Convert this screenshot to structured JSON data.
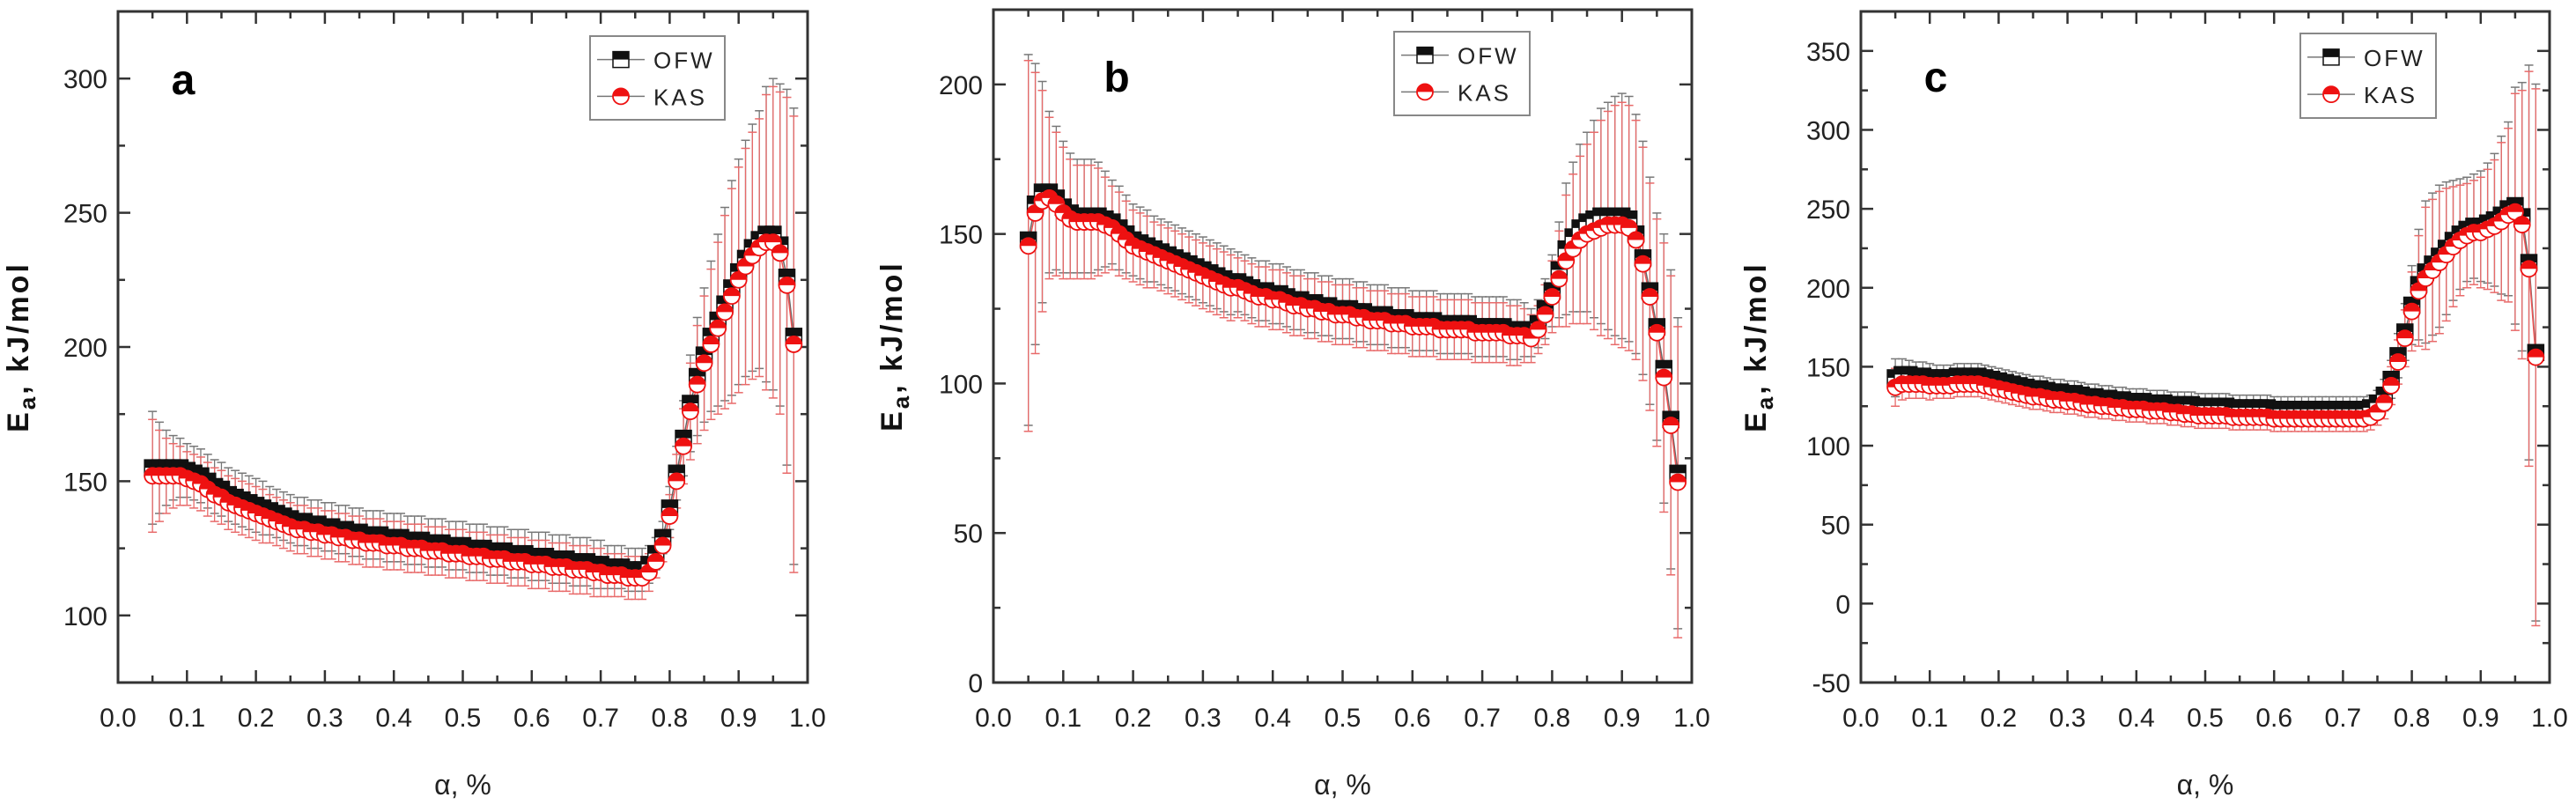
{
  "colors": {
    "ofw": "#111111",
    "kas": "#ee1111",
    "err_kas": "#e86a6a",
    "err_ofw": "#777777",
    "frame": "#333333"
  },
  "chart_data": [
    {
      "type": "scatter",
      "panel": "a",
      "xlabel": "α, %",
      "ylabel_main": "E",
      "ylabel_sub": "a",
      "ylabel_rest": ", kJ/mol",
      "xlim": [
        0,
        1
      ],
      "ylim": [
        75,
        325
      ],
      "xticks": [
        0.0,
        0.1,
        0.2,
        0.3,
        0.4,
        0.5,
        0.6,
        0.7,
        0.8,
        0.9,
        1.0
      ],
      "xtick_labels": [
        "0.0",
        "0.1",
        "0.2",
        "0.3",
        "0.4",
        "0.5",
        "0.6",
        "0.7",
        "0.8",
        "0.9",
        "1.0"
      ],
      "yticks": [
        100,
        150,
        200,
        250,
        300
      ],
      "ytick_labels": [
        "100",
        "150",
        "200",
        "250",
        "300"
      ],
      "legend": [
        "OFW",
        "KAS"
      ],
      "legend_position": "top-right",
      "x_start": 0.05,
      "x_step": 0.01,
      "series": [
        {
          "name": "OFW",
          "values": [
            155,
            155,
            155,
            155,
            155,
            154,
            153,
            152,
            150,
            148,
            147,
            145,
            144,
            143,
            142,
            141,
            140,
            139,
            138,
            137,
            136,
            135,
            135,
            134,
            134,
            133,
            133,
            132,
            132,
            131,
            131,
            130,
            130,
            130,
            129,
            129,
            129,
            128,
            128,
            128,
            127,
            127,
            127,
            126,
            126,
            126,
            125,
            125,
            125,
            124,
            124,
            124,
            123,
            123,
            123,
            122,
            122,
            122,
            121,
            121,
            121,
            120,
            120,
            120,
            119,
            119,
            118,
            118,
            118,
            117,
            117,
            117,
            119,
            123,
            129,
            140,
            153,
            166,
            179,
            189,
            197,
            204,
            210,
            216,
            222,
            228,
            233,
            237,
            240,
            242,
            242,
            238,
            226,
            204
          ]
        },
        {
          "name": "KAS",
          "values": [
            152,
            152,
            152,
            152,
            152,
            151,
            150,
            149,
            147,
            145,
            144,
            142,
            141,
            140,
            139,
            138,
            137,
            136,
            135,
            134,
            133,
            132,
            132,
            131,
            131,
            130,
            130,
            129,
            129,
            128,
            128,
            127,
            127,
            127,
            126,
            126,
            126,
            125,
            125,
            125,
            124,
            124,
            124,
            123,
            123,
            123,
            122,
            122,
            122,
            121,
            121,
            121,
            120,
            120,
            120,
            119,
            119,
            119,
            118,
            118,
            118,
            117,
            117,
            117,
            116,
            116,
            115,
            115,
            115,
            114,
            114,
            114,
            116,
            120,
            126,
            137,
            150,
            163,
            176,
            186,
            194,
            201,
            207,
            213,
            219,
            225,
            230,
            234,
            237,
            239,
            239,
            235,
            223,
            201
          ]
        }
      ],
      "error": [
        21,
        17,
        14,
        12,
        11,
        10,
        10,
        10,
        10,
        10,
        10,
        10,
        10,
        10,
        10,
        10,
        10,
        9,
        9,
        9,
        9,
        9,
        9,
        9,
        9,
        9,
        9,
        9,
        9,
        9,
        9,
        9,
        9,
        9,
        9,
        9,
        9,
        9,
        9,
        9,
        9,
        9,
        9,
        9,
        9,
        9,
        9,
        9,
        9,
        9,
        9,
        9,
        9,
        9,
        9,
        9,
        9,
        9,
        9,
        9,
        9,
        9,
        9,
        9,
        9,
        9,
        8,
        8,
        8,
        8,
        8,
        8,
        7,
        6,
        6,
        8,
        10,
        14,
        18,
        22,
        25,
        28,
        32,
        36,
        40,
        42,
        44,
        46,
        48,
        55,
        58,
        60,
        70,
        85
      ]
    },
    {
      "type": "scatter",
      "panel": "b",
      "xlabel": "α, %",
      "ylabel_main": "E",
      "ylabel_sub": "a",
      "ylabel_rest": ", kJ/mol",
      "xlim": [
        0,
        1
      ],
      "ylim": [
        0,
        225
      ],
      "xticks": [
        0.0,
        0.1,
        0.2,
        0.3,
        0.4,
        0.5,
        0.6,
        0.7,
        0.8,
        0.9,
        1.0
      ],
      "xtick_labels": [
        "0.0",
        "0.1",
        "0.2",
        "0.3",
        "0.4",
        "0.5",
        "0.6",
        "0.7",
        "0.8",
        "0.9",
        "1.0"
      ],
      "yticks": [
        0,
        50,
        100,
        150,
        200
      ],
      "ytick_labels": [
        "0",
        "50",
        "100",
        "150",
        "200"
      ],
      "legend": [
        "OFW",
        "KAS"
      ],
      "legend_position": "top-right",
      "x_start": 0.05,
      "x_step": 0.01,
      "series": [
        {
          "name": "OFW",
          "values": [
            148,
            160,
            164,
            164,
            162,
            159,
            157,
            156,
            156,
            156,
            156,
            155,
            154,
            152,
            150,
            148,
            147,
            146,
            145,
            144,
            143,
            142,
            141,
            140,
            139,
            138,
            137,
            136,
            135,
            134,
            134,
            133,
            132,
            131,
            131,
            130,
            130,
            129,
            128,
            128,
            127,
            127,
            126,
            126,
            125,
            125,
            125,
            124,
            124,
            123,
            123,
            123,
            122,
            122,
            122,
            121,
            121,
            121,
            121,
            120,
            120,
            120,
            120,
            120,
            119,
            119,
            119,
            119,
            119,
            118,
            118,
            118,
            117,
            120,
            125,
            131,
            138,
            145,
            149,
            152,
            154,
            155,
            156,
            156,
            156,
            156,
            155,
            150,
            142,
            131,
            119,
            105,
            88,
            70
          ]
        },
        {
          "name": "KAS",
          "values": [
            146,
            157,
            161,
            162,
            160,
            157,
            155,
            154,
            154,
            154,
            154,
            153,
            152,
            150,
            148,
            146,
            145,
            144,
            143,
            142,
            141,
            140,
            139,
            138,
            137,
            136,
            135,
            134,
            133,
            132,
            132,
            131,
            130,
            129,
            129,
            128,
            128,
            127,
            126,
            126,
            125,
            125,
            124,
            124,
            123,
            123,
            123,
            122,
            122,
            121,
            121,
            121,
            120,
            120,
            120,
            119,
            119,
            119,
            119,
            118,
            118,
            118,
            118,
            118,
            117,
            117,
            117,
            117,
            117,
            116,
            116,
            116,
            115,
            118,
            123,
            129,
            135,
            141,
            145,
            148,
            150,
            151,
            152,
            153,
            153,
            153,
            152,
            148,
            140,
            129,
            117,
            102,
            86,
            67
          ]
        }
      ],
      "error": [
        62,
        47,
        37,
        27,
        24,
        22,
        20,
        19,
        19,
        19,
        18,
        16,
        14,
        14,
        13,
        12,
        12,
        12,
        11,
        11,
        11,
        11,
        11,
        11,
        11,
        11,
        11,
        11,
        11,
        11,
        10,
        10,
        10,
        10,
        10,
        10,
        10,
        10,
        10,
        10,
        10,
        10,
        10,
        10,
        10,
        10,
        10,
        10,
        10,
        10,
        10,
        10,
        10,
        10,
        10,
        10,
        10,
        10,
        10,
        10,
        10,
        10,
        10,
        10,
        10,
        10,
        10,
        10,
        10,
        10,
        10,
        9,
        8,
        8,
        10,
        12,
        16,
        22,
        25,
        28,
        30,
        33,
        36,
        38,
        40,
        41,
        41,
        40,
        39,
        38,
        38,
        45,
        50,
        52
      ]
    },
    {
      "type": "scatter",
      "panel": "c",
      "xlabel": "α, %",
      "ylabel_main": "E",
      "ylabel_sub": "a",
      "ylabel_rest": ", kJ/mol",
      "xlim": [
        0,
        1
      ],
      "ylim": [
        -50,
        375
      ],
      "xticks": [
        0.0,
        0.1,
        0.2,
        0.3,
        0.4,
        0.5,
        0.6,
        0.7,
        0.8,
        0.9,
        1.0
      ],
      "xtick_labels": [
        "0.0",
        "0.1",
        "0.2",
        "0.3",
        "0.4",
        "0.5",
        "0.6",
        "0.7",
        "0.8",
        "0.9",
        "1.0"
      ],
      "yticks": [
        -50,
        0,
        50,
        100,
        150,
        200,
        250,
        300,
        350
      ],
      "ytick_labels": [
        "-50",
        "0",
        "50",
        "100",
        "150",
        "200",
        "250",
        "300",
        "350"
      ],
      "legend": [
        "OFW",
        "KAS"
      ],
      "legend_position": "top-right",
      "x_start": 0.05,
      "x_step": 0.01,
      "series": [
        {
          "name": "OFW",
          "values": [
            143,
            145,
            145,
            144,
            144,
            143,
            143,
            143,
            143,
            144,
            144,
            144,
            144,
            143,
            142,
            141,
            140,
            139,
            138,
            137,
            136,
            136,
            135,
            134,
            134,
            133,
            133,
            132,
            131,
            131,
            130,
            130,
            129,
            129,
            128,
            128,
            128,
            127,
            127,
            127,
            126,
            126,
            126,
            126,
            125,
            125,
            125,
            125,
            125,
            124,
            124,
            124,
            124,
            124,
            124,
            123,
            123,
            123,
            123,
            123,
            123,
            123,
            123,
            123,
            123,
            123,
            123,
            123,
            123,
            124,
            127,
            132,
            142,
            157,
            172,
            189,
            202,
            210,
            215,
            220,
            225,
            230,
            234,
            237,
            239,
            239,
            241,
            243,
            246,
            250,
            252,
            245,
            216,
            159
          ]
        },
        {
          "name": "KAS",
          "values": [
            137,
            139,
            139,
            139,
            139,
            138,
            138,
            138,
            138,
            139,
            139,
            139,
            139,
            138,
            137,
            136,
            135,
            134,
            133,
            132,
            131,
            131,
            130,
            129,
            129,
            128,
            128,
            127,
            126,
            126,
            125,
            125,
            124,
            124,
            123,
            123,
            123,
            122,
            122,
            122,
            121,
            121,
            120,
            120,
            119,
            119,
            119,
            119,
            119,
            118,
            118,
            118,
            118,
            118,
            118,
            117,
            117,
            117,
            117,
            117,
            117,
            117,
            117,
            117,
            117,
            117,
            117,
            117,
            117,
            118,
            121,
            127,
            138,
            153,
            168,
            185,
            198,
            206,
            211,
            216,
            221,
            226,
            230,
            233,
            235,
            235,
            237,
            239,
            242,
            246,
            248,
            240,
            212,
            156
          ]
        }
      ],
      "error": [
        12,
        10,
        9,
        9,
        9,
        9,
        8,
        8,
        8,
        8,
        8,
        8,
        8,
        8,
        8,
        8,
        8,
        8,
        8,
        8,
        8,
        8,
        8,
        8,
        8,
        8,
        8,
        8,
        8,
        8,
        8,
        8,
        8,
        8,
        8,
        8,
        8,
        8,
        8,
        8,
        8,
        8,
        8,
        8,
        8,
        8,
        8,
        8,
        8,
        8,
        8,
        8,
        8,
        8,
        8,
        8,
        8,
        8,
        8,
        8,
        8,
        8,
        8,
        8,
        8,
        8,
        8,
        8,
        8,
        8,
        8,
        10,
        12,
        14,
        18,
        25,
        35,
        45,
        45,
        45,
        42,
        38,
        35,
        33,
        33,
        35,
        38,
        42,
        50,
        55,
        75,
        85,
        125,
        170
      ]
    }
  ]
}
